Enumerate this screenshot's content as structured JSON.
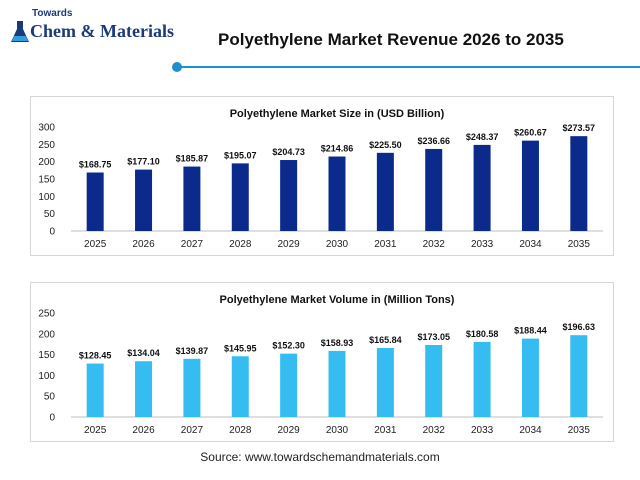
{
  "header": {
    "logo_small": "Towards",
    "logo_main": "Chem & Materials",
    "title": "Polyethylene Market Revenue 2026 to 2035"
  },
  "colors": {
    "accent": "#1d8fcf",
    "bar_dark": "#0b2a8c",
    "bar_light": "#35bdf2"
  },
  "chart_data": [
    {
      "type": "bar",
      "title": "Polyethylene Market Size in (USD Billion)",
      "categories": [
        "2025",
        "2026",
        "2027",
        "2028",
        "2029",
        "2030",
        "2031",
        "2032",
        "2033",
        "2034",
        "2035"
      ],
      "values": [
        168.75,
        177.1,
        185.87,
        195.07,
        204.73,
        214.86,
        225.5,
        236.66,
        248.37,
        260.67,
        273.57
      ],
      "labels": [
        "$168.75",
        "$177.10",
        "$185.87",
        "$195.07",
        "$204.73",
        "$214.86",
        "$225.50",
        "$236.66",
        "$248.37",
        "$260.67",
        "$273.57"
      ],
      "yticks": [
        0,
        50,
        100,
        150,
        200,
        250,
        300
      ],
      "ylim": [
        0,
        300
      ],
      "grid": false,
      "color": "#0b2a8c"
    },
    {
      "type": "bar",
      "title": "Polyethylene Market Volume in (Million Tons)",
      "categories": [
        "2025",
        "2026",
        "2027",
        "2028",
        "2029",
        "2030",
        "2031",
        "2032",
        "2033",
        "2034",
        "2035"
      ],
      "values": [
        128.45,
        134.04,
        139.87,
        145.95,
        152.3,
        158.93,
        165.84,
        173.05,
        180.58,
        188.44,
        196.63
      ],
      "labels": [
        "$128.45",
        "$134.04",
        "$139.87",
        "$145.95",
        "$152.30",
        "$158.93",
        "$165.84",
        "$173.05",
        "$180.58",
        "$188.44",
        "$196.63"
      ],
      "yticks": [
        0,
        50,
        100,
        150,
        200,
        250
      ],
      "ylim": [
        0,
        250
      ],
      "grid": false,
      "color": "#35bdf2"
    }
  ],
  "footer": {
    "source": "Source: www.towardschemandmaterials.com"
  }
}
